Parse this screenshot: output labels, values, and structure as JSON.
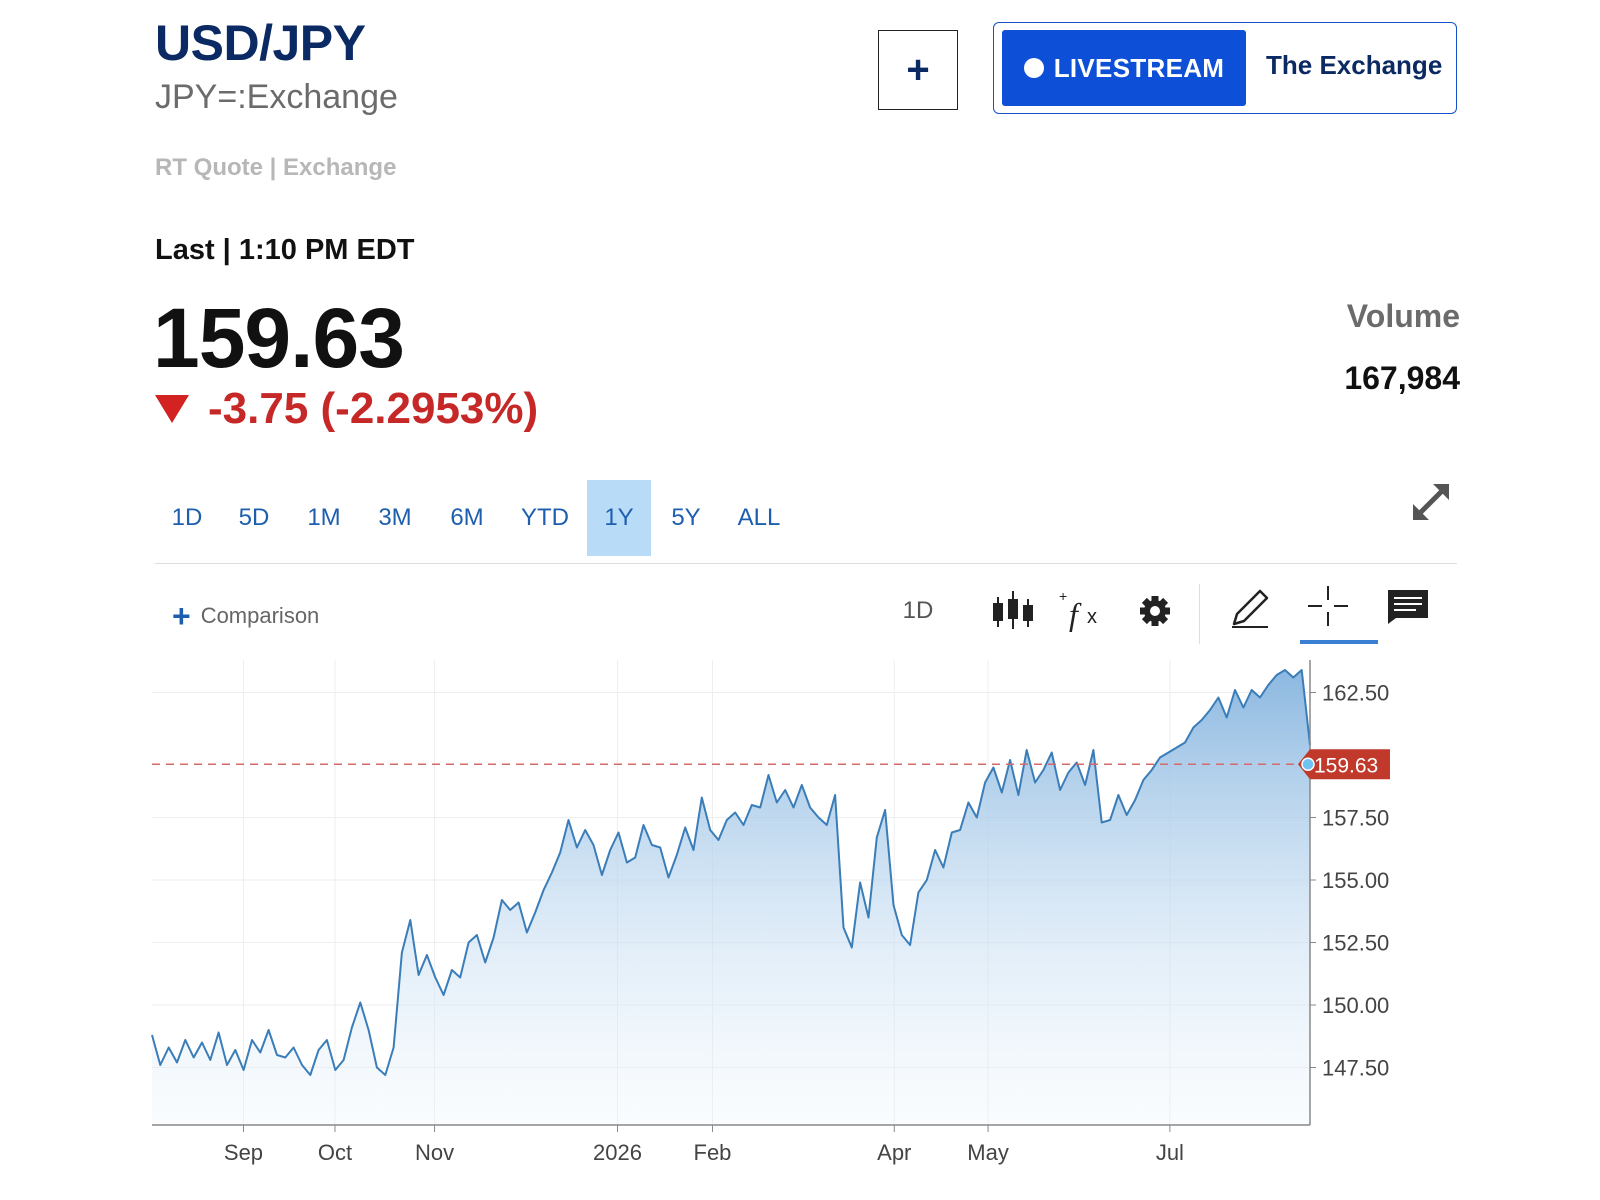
{
  "header": {
    "symbol": "USD/JPY",
    "exchange_symbol": "JPY=:Exchange",
    "quote_source": "RT Quote | Exchange",
    "add_button_label": "+",
    "livestream_label": "LIVESTREAM",
    "exchange_link": "The Exchange"
  },
  "quote": {
    "last_label": "Last | 1:10 PM EDT",
    "price": "159.63",
    "change": "-3.75 (-2.2953%)",
    "volume_label": "Volume",
    "volume_value": "167,984"
  },
  "range_tabs": [
    {
      "label": "1D",
      "active": false
    },
    {
      "label": "5D",
      "active": false
    },
    {
      "label": "1M",
      "active": false
    },
    {
      "label": "3M",
      "active": false
    },
    {
      "label": "6M",
      "active": false
    },
    {
      "label": "YTD",
      "active": false
    },
    {
      "label": "1Y",
      "active": true
    },
    {
      "label": "5Y",
      "active": false
    },
    {
      "label": "ALL",
      "active": false
    }
  ],
  "toolbar": {
    "comparison_label": "Comparison",
    "interval_label": "1D",
    "icons": [
      "candlestick-icon",
      "fx-study-icon",
      "gear-icon",
      "pencil-draw-icon",
      "crosshair-icon",
      "news-icon"
    ]
  },
  "colors": {
    "brand_navy": "#0b2a63",
    "livestream_blue": "#0d4fd6",
    "negative_red": "#c62828",
    "line_blue": "#3a7db8",
    "price_tag_red": "#c0392b"
  },
  "chart_data": {
    "type": "area",
    "title": "",
    "xlabel": "",
    "ylabel": "",
    "x_tick_labels": [
      "Sep",
      "Oct",
      "Nov",
      "2026",
      "Feb",
      "Apr",
      "May",
      "Jul"
    ],
    "y_tick_labels": [
      "162.50",
      "157.50",
      "155.00",
      "152.50",
      "150.00",
      "147.50"
    ],
    "y_range": [
      145.2,
      163.8
    ],
    "current_price_label": "159.63",
    "reference_line_value": 159.63,
    "series": [
      {
        "values": [
          148.8,
          147.6,
          148.3,
          147.7,
          148.6,
          147.9,
          148.5,
          147.8,
          148.9,
          147.6,
          148.2,
          147.4,
          148.6,
          148.1,
          149.0,
          148.0,
          147.9,
          148.3,
          147.6,
          147.2,
          148.2,
          148.6,
          147.4,
          147.8,
          149.1,
          150.1,
          149.0,
          147.5,
          147.2,
          148.3,
          152.1,
          153.4,
          151.2,
          152.0,
          151.1,
          150.4,
          151.4,
          151.1,
          152.5,
          152.8,
          151.7,
          152.7,
          154.2,
          153.8,
          154.1,
          152.9,
          153.7,
          154.6,
          155.3,
          156.1,
          157.4,
          156.3,
          157.0,
          156.4,
          155.2,
          156.2,
          156.9,
          155.7,
          155.9,
          157.2,
          156.4,
          156.3,
          155.1,
          156.0,
          157.1,
          156.2,
          158.3,
          157.0,
          156.6,
          157.4,
          157.7,
          157.2,
          158.0,
          157.9,
          159.2,
          158.1,
          158.6,
          157.9,
          158.8,
          157.9,
          157.5,
          157.2,
          158.4,
          153.1,
          152.3,
          154.9,
          153.5,
          156.7,
          157.8,
          154.0,
          152.8,
          152.4,
          154.5,
          155.0,
          156.2,
          155.5,
          156.9,
          157.0,
          158.1,
          157.5,
          158.9,
          159.5,
          158.5,
          159.8,
          158.4,
          160.2,
          158.9,
          159.4,
          160.1,
          158.6,
          159.3,
          159.7,
          158.8,
          160.2,
          157.3,
          157.4,
          158.4,
          157.6,
          158.2,
          159.0,
          159.4,
          159.9,
          160.1,
          160.3,
          160.5,
          161.1,
          161.4,
          161.8,
          162.3,
          161.5,
          162.6,
          161.9,
          162.6,
          162.3,
          162.8,
          163.2,
          163.4,
          163.1,
          163.4,
          160.4
        ]
      }
    ]
  }
}
